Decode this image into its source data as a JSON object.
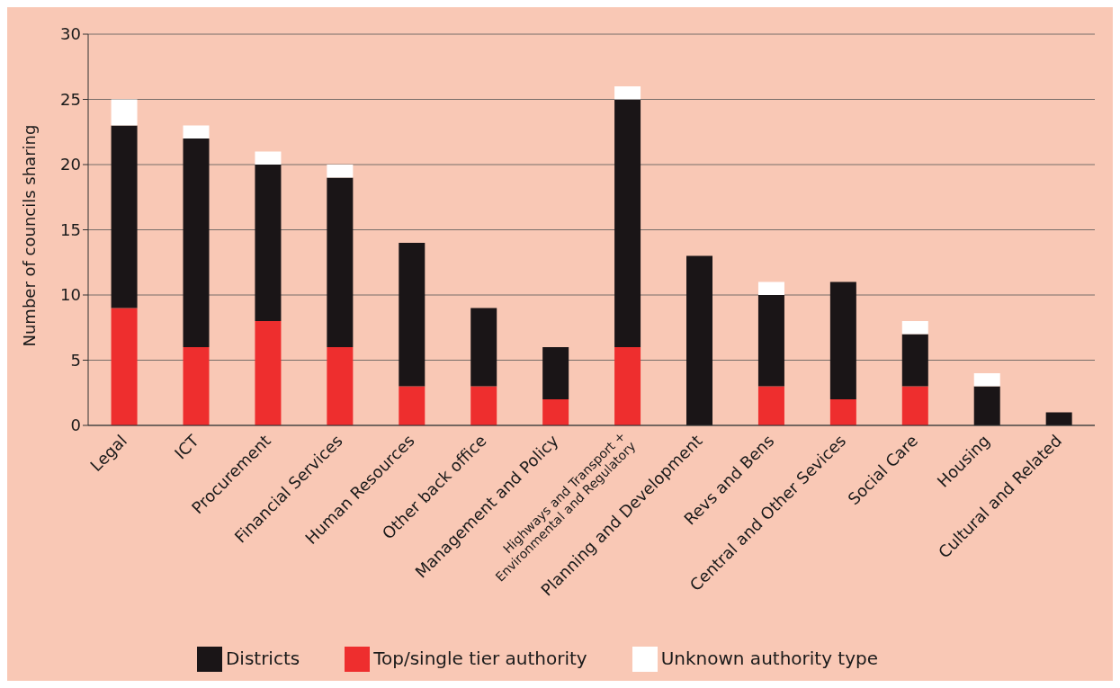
{
  "chart_data": {
    "type": "bar",
    "stacked": true,
    "ylabel": "Number of councils sharing",
    "categories": [
      "Legal",
      "ICT",
      "Procurement",
      "Financial Services",
      "Human Resources",
      "Other back office",
      "Management and Policy",
      "Highways and Transport +\nEnvironmental and Regulatory",
      "Planning and Development",
      "Revs and Bens",
      "Central and Other Sevices",
      "Social Care",
      "Housing",
      "Cultural and Related"
    ],
    "series": [
      {
        "name": "Top/single tier authority",
        "color": "#ee2e2e",
        "values": [
          9,
          6,
          8,
          6,
          3,
          3,
          2,
          6,
          0,
          3,
          2,
          3,
          0,
          0
        ]
      },
      {
        "name": "Districts",
        "color": "#1a1517",
        "values": [
          14,
          16,
          12,
          13,
          11,
          6,
          4,
          19,
          13,
          7,
          9,
          4,
          3,
          1
        ]
      },
      {
        "name": "Unknown authority type",
        "color": "#ffffff",
        "values": [
          2,
          1,
          1,
          1,
          0,
          0,
          0,
          1,
          0,
          1,
          0,
          1,
          1,
          0
        ]
      }
    ],
    "ylim": [
      0,
      30
    ],
    "yticks": [
      0,
      5,
      10,
      15,
      20,
      25,
      30
    ],
    "grid": "y",
    "legend": "bottom"
  }
}
